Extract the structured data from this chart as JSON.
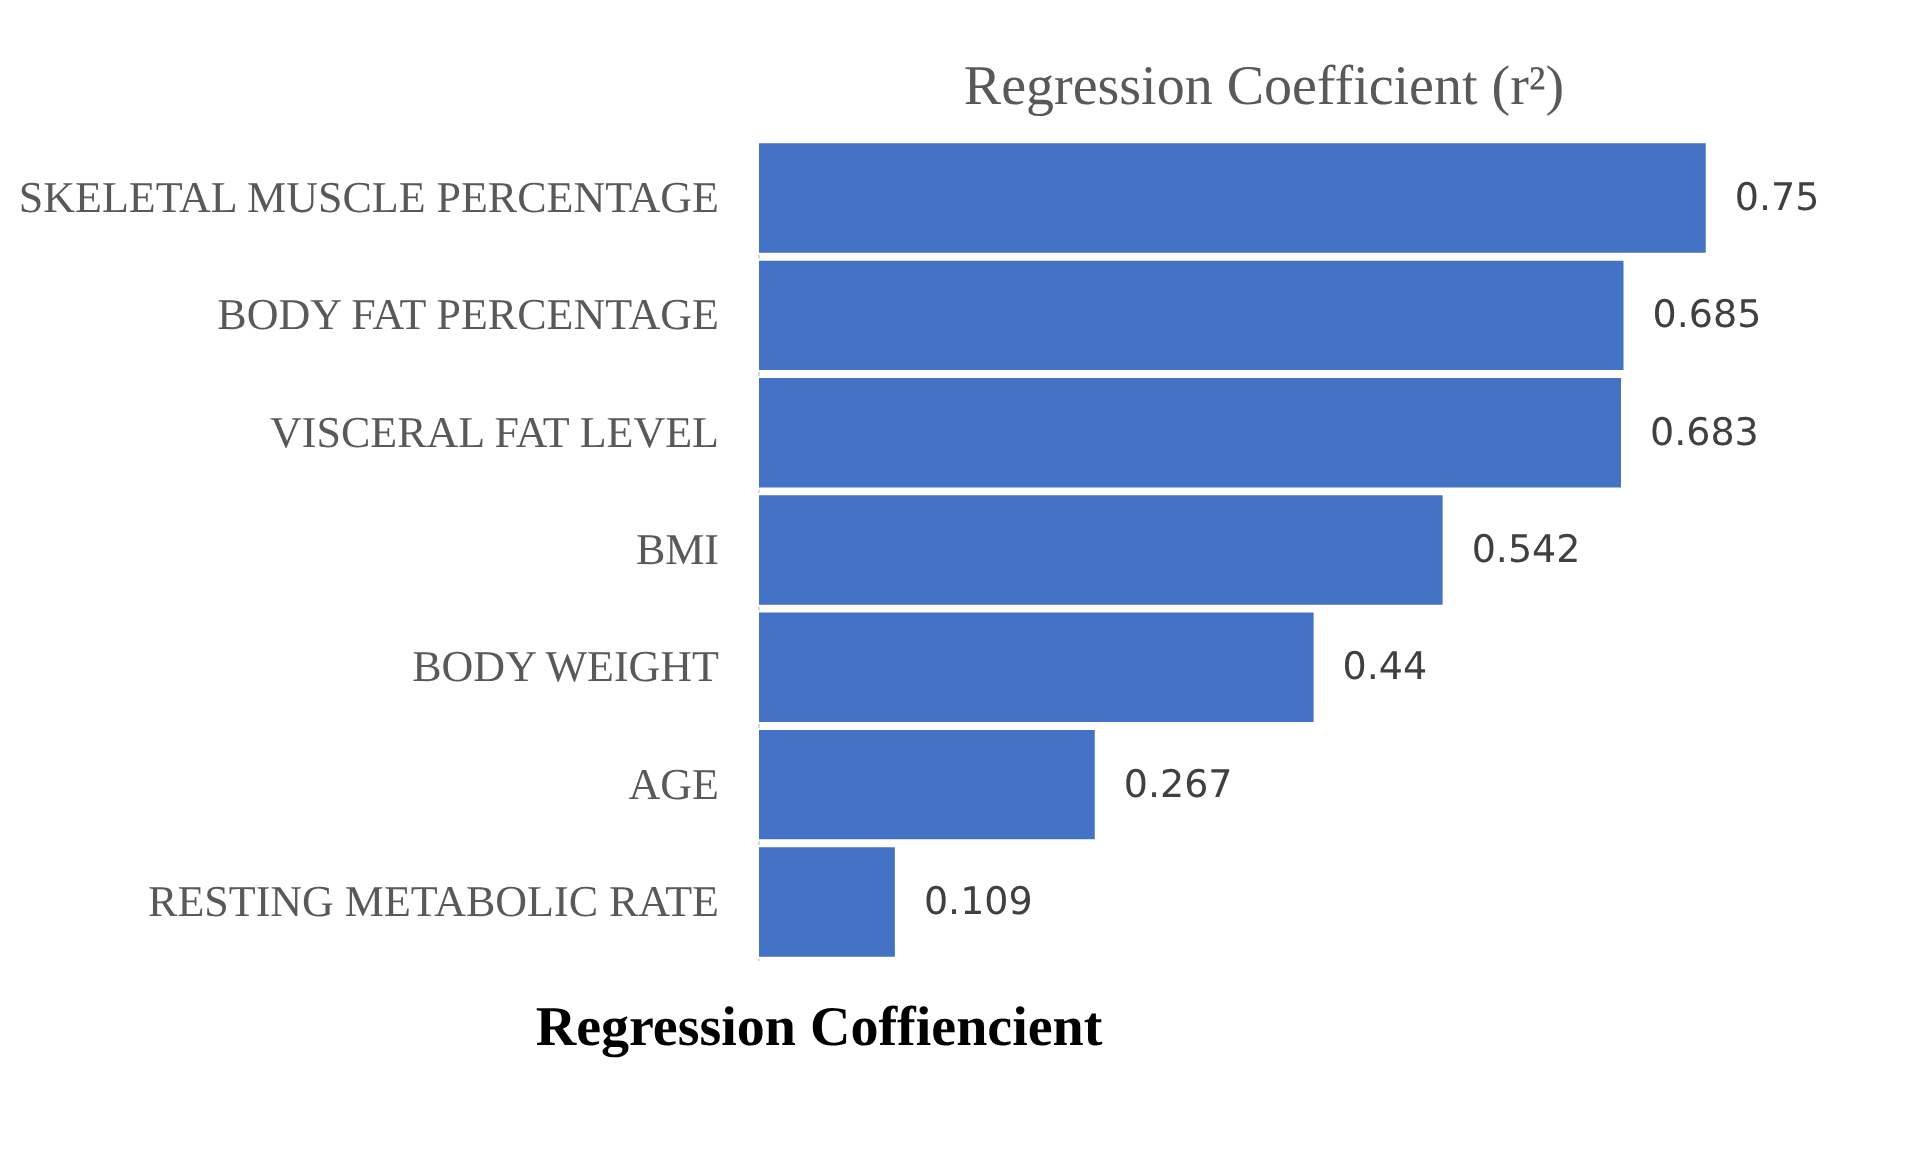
{
  "chart_data": {
    "type": "bar",
    "orientation": "horizontal",
    "title": "Regression Coefficient (r²)",
    "xlabel": "Regression Coffiencient",
    "categories": [
      "SKELETAL MUSCLE PERCENTAGE",
      "BODY FAT PERCENTAGE",
      "VISCERAL FAT LEVEL",
      "BMI",
      "BODY WEIGHT",
      "AGE",
      "RESTING METABOLIC RATE"
    ],
    "values": [
      0.75,
      0.685,
      0.683,
      0.542,
      0.44,
      0.267,
      0.109
    ],
    "color": "#4472c4",
    "data_labels": true,
    "tick_labels": "y"
  }
}
